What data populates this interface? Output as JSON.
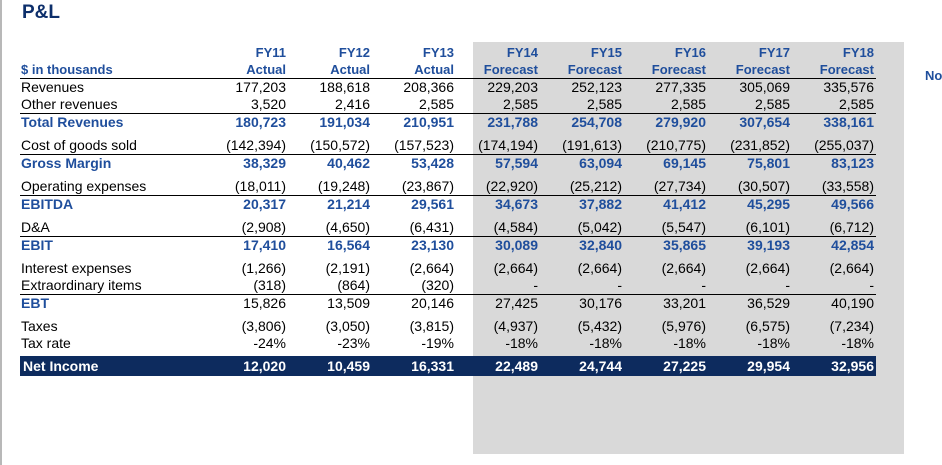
{
  "title": "P&L",
  "cut_header": "No",
  "units_label": "$ in thousands",
  "columns": [
    {
      "year": "FY11",
      "kind": "Actual"
    },
    {
      "year": "FY12",
      "kind": "Actual"
    },
    {
      "year": "FY13",
      "kind": "Actual"
    },
    {
      "year": "FY14",
      "kind": "Forecast"
    },
    {
      "year": "FY15",
      "kind": "Forecast"
    },
    {
      "year": "FY16",
      "kind": "Forecast"
    },
    {
      "year": "FY17",
      "kind": "Forecast"
    },
    {
      "year": "FY18",
      "kind": "Forecast"
    }
  ],
  "rows": [
    {
      "label": "Revenues",
      "values": [
        "177,203",
        "188,618",
        "208,366",
        "229,203",
        "252,123",
        "277,335",
        "305,069",
        "335,576"
      ]
    },
    {
      "label": "Other revenues",
      "values": [
        "3,520",
        "2,416",
        "2,585",
        "2,585",
        "2,585",
        "2,585",
        "2,585",
        "2,585"
      ]
    },
    {
      "label": "Total Revenues",
      "values": [
        "180,723",
        "191,034",
        "210,951",
        "231,788",
        "254,708",
        "279,920",
        "307,654",
        "338,161"
      ]
    },
    {
      "label": "Cost of goods sold",
      "values": [
        "(142,394)",
        "(150,572)",
        "(157,523)",
        "(174,194)",
        "(191,613)",
        "(210,775)",
        "(231,852)",
        "(255,037)"
      ]
    },
    {
      "label": "Gross Margin",
      "values": [
        "38,329",
        "40,462",
        "53,428",
        "57,594",
        "63,094",
        "69,145",
        "75,801",
        "83,123"
      ]
    },
    {
      "label": "Operating expenses",
      "values": [
        "(18,011)",
        "(19,248)",
        "(23,867)",
        "(22,920)",
        "(25,212)",
        "(27,734)",
        "(30,507)",
        "(33,558)"
      ]
    },
    {
      "label": "EBITDA",
      "values": [
        "20,317",
        "21,214",
        "29,561",
        "34,673",
        "37,882",
        "41,412",
        "45,295",
        "49,566"
      ]
    },
    {
      "label": "D&A",
      "values": [
        "(2,908)",
        "(4,650)",
        "(6,431)",
        "(4,584)",
        "(5,042)",
        "(5,547)",
        "(6,101)",
        "(6,712)"
      ]
    },
    {
      "label": "EBIT",
      "values": [
        "17,410",
        "16,564",
        "23,130",
        "30,089",
        "32,840",
        "35,865",
        "39,193",
        "42,854"
      ]
    },
    {
      "label": "Interest expenses",
      "values": [
        "(1,266)",
        "(2,191)",
        "(2,664)",
        "(2,664)",
        "(2,664)",
        "(2,664)",
        "(2,664)",
        "(2,664)"
      ]
    },
    {
      "label": "Extraordinary items",
      "values": [
        "(318)",
        "(864)",
        "(320)",
        "-",
        "-",
        "-",
        "-",
        "-"
      ]
    },
    {
      "label": "EBT",
      "values": [
        "15,826",
        "13,509",
        "20,146",
        "27,425",
        "30,176",
        "33,201",
        "36,529",
        "40,190"
      ]
    },
    {
      "label": "Taxes",
      "values": [
        "(3,806)",
        "(3,050)",
        "(3,815)",
        "(4,937)",
        "(5,432)",
        "(5,976)",
        "(6,575)",
        "(7,234)"
      ]
    },
    {
      "label": "Tax rate",
      "values": [
        "-24%",
        "-23%",
        "-19%",
        "-18%",
        "-18%",
        "-18%",
        "-18%",
        "-18%"
      ]
    },
    {
      "label": "Net Income",
      "values": [
        "12,020",
        "10,459",
        "16,331",
        "22,489",
        "24,744",
        "27,225",
        "29,954",
        "32,956"
      ]
    }
  ],
  "colors": {
    "title": "#0d2f6b",
    "header": "#1f4e9c",
    "forecast_shade": "#d9d9d9",
    "net_income_bar": "#0d2b5e"
  }
}
